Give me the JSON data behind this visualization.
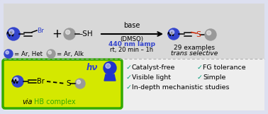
{
  "bg_color": "#dde0f0",
  "border_color": "#8899dd",
  "top_bg": "#d8d8d8",
  "bot_bg": "#f0f0f0",
  "green_box": "#d4e800",
  "green_border": "#33aa00",
  "blue": "#3344cc",
  "gray": "#999999",
  "teal": "#009977",
  "red": "#cc2200",
  "green_text": "#33aa00",
  "blue_text": "#3344cc",
  "base_text": "base",
  "dmso_text": "(DMSO)",
  "lamp_text": "440 nm lamp",
  "cond_text": "rt, 20 min – 1h",
  "examples_text": "29 examples",
  "trans_text": "trans selective",
  "blue_legend": "= Ar, Het",
  "gray_legend": "= Ar, Alk",
  "via_text": "via",
  "hb_text": "HB complex",
  "hv_text": "hν",
  "check1a": "Catalyst-free",
  "check1b": "FG tolerance",
  "check2a": "Visible light",
  "check2b": "Simple",
  "check3a": "In-depth mechanistic studies",
  "check_mark": "✓"
}
